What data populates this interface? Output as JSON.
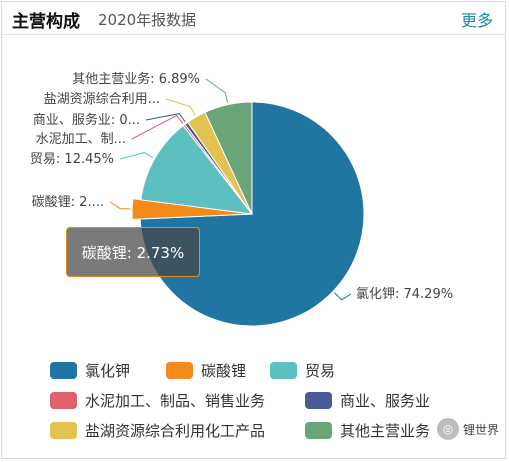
{
  "header": {
    "title": "主营构成",
    "subtitle": "2020年报数据",
    "more": "更多"
  },
  "tooltip": {
    "text": "碳酸锂: 2.73%"
  },
  "watermark": {
    "text": "锂世界"
  },
  "chart_data": {
    "type": "pie",
    "title": "主营构成",
    "subtitle": "2020年报数据",
    "legend_position": "bottom",
    "slices": [
      {
        "name": "氯化钾",
        "value": 74.29,
        "color": "#2175a3",
        "label": "氯化钾: 74.29%"
      },
      {
        "name": "碳酸锂",
        "value": 2.73,
        "color": "#f28a1c",
        "label": "碳酸锂: 2...."
      },
      {
        "name": "贸易",
        "value": 12.45,
        "color": "#5ebfc1",
        "label": "贸易: 12.45%"
      },
      {
        "name": "水泥加工、制品、销售业务",
        "value": 0.3,
        "color": "#e06068",
        "label": "水泥加工、制..."
      },
      {
        "name": "商业、服务业",
        "value": 0.5,
        "color": "#4a5a96",
        "label": "商业、服务业: 0..."
      },
      {
        "name": "盐湖资源综合利用化工产品",
        "value": 2.84,
        "color": "#e3c24f",
        "label": "盐湖资源综合利用..."
      },
      {
        "name": "其他主营业务",
        "value": 6.89,
        "color": "#6aa57a",
        "label": "其他主营业务: 6.89%"
      }
    ]
  }
}
